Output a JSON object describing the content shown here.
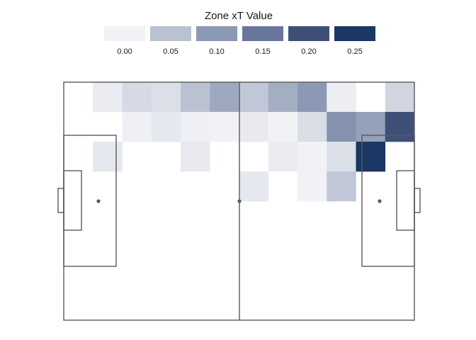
{
  "chart_data": {
    "type": "heatmap",
    "legend": {
      "title": "Zone xT Value",
      "breaks": [
        0.0,
        0.05,
        0.1,
        0.15,
        0.2,
        0.25
      ],
      "labels": [
        "0.00",
        "0.05",
        "0.10",
        "0.15",
        "0.20",
        "0.25"
      ],
      "colors": [
        "#f1f2f6",
        "#bac2d2",
        "#8c99b4",
        "#67769a",
        "#3f5078",
        "#1a3863"
      ],
      "position": "top"
    },
    "grid": {
      "columns": 12,
      "rows": 8
    },
    "cells": [
      {
        "row": 0,
        "col": 1,
        "value": 0.006
      },
      {
        "row": 0,
        "col": 2,
        "value": 0.025
      },
      {
        "row": 0,
        "col": 3,
        "value": 0.02
      },
      {
        "row": 0,
        "col": 4,
        "value": 0.05
      },
      {
        "row": 0,
        "col": 5,
        "value": 0.08
      },
      {
        "row": 0,
        "col": 6,
        "value": 0.045
      },
      {
        "row": 0,
        "col": 7,
        "value": 0.075
      },
      {
        "row": 0,
        "col": 8,
        "value": 0.1
      },
      {
        "row": 0,
        "col": 9,
        "value": 0.004
      },
      {
        "row": 0,
        "col": 11,
        "value": 0.03
      },
      {
        "row": 1,
        "col": 2,
        "value": 0.002
      },
      {
        "row": 1,
        "col": 3,
        "value": 0.01
      },
      {
        "row": 1,
        "col": 4,
        "value": 0.002
      },
      {
        "row": 1,
        "col": 5,
        "value": 0.0
      },
      {
        "row": 1,
        "col": 6,
        "value": 0.008
      },
      {
        "row": 1,
        "col": 7,
        "value": 0.0
      },
      {
        "row": 1,
        "col": 8,
        "value": 0.022
      },
      {
        "row": 1,
        "col": 9,
        "value": 0.11
      },
      {
        "row": 1,
        "col": 10,
        "value": 0.09
      },
      {
        "row": 1,
        "col": 11,
        "value": 0.2
      },
      {
        "row": 2,
        "col": 1,
        "value": 0.01
      },
      {
        "row": 2,
        "col": 4,
        "value": 0.008
      },
      {
        "row": 2,
        "col": 7,
        "value": 0.006
      },
      {
        "row": 2,
        "col": 8,
        "value": 0.0
      },
      {
        "row": 2,
        "col": 9,
        "value": 0.02
      },
      {
        "row": 2,
        "col": 10,
        "value": 0.25
      },
      {
        "row": 3,
        "col": 6,
        "value": 0.01
      },
      {
        "row": 3,
        "col": 8,
        "value": 0.0
      },
      {
        "row": 3,
        "col": 9,
        "value": 0.045
      }
    ]
  }
}
